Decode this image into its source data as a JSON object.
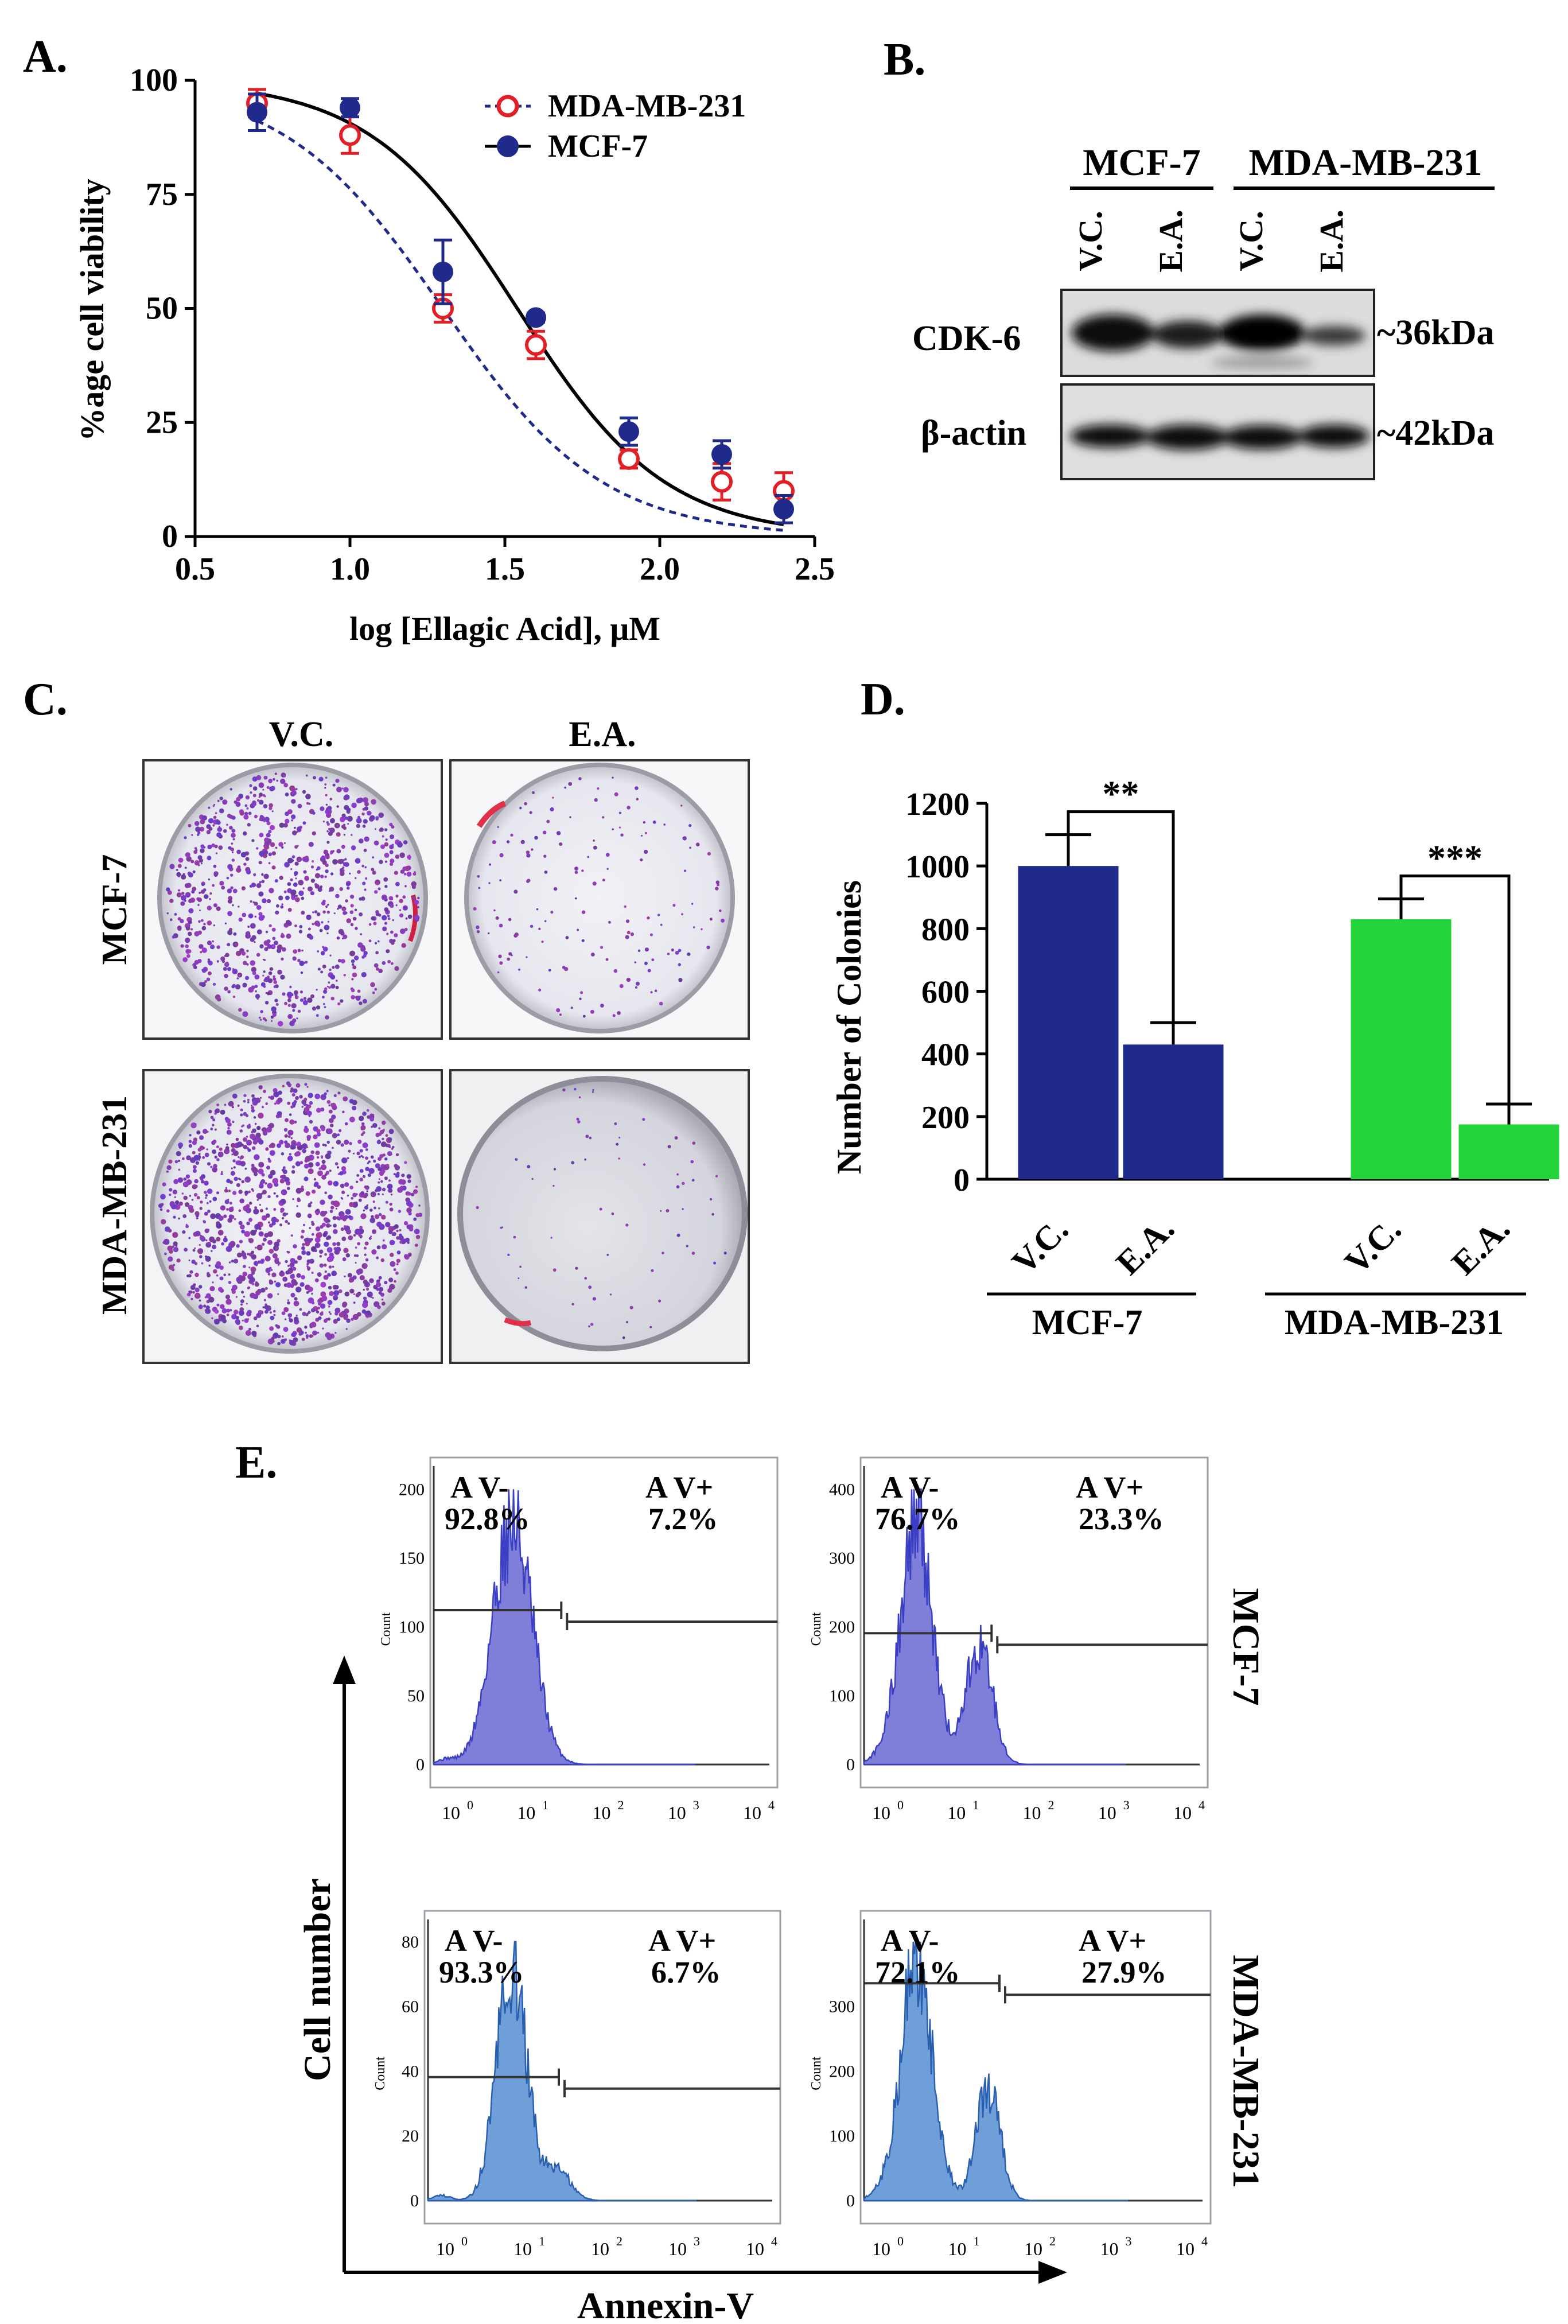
{
  "panel_labels": {
    "a": "A.",
    "b": "B.",
    "c": "C.",
    "d": "D.",
    "e": "E."
  },
  "colors": {
    "mcf7": "#1f2a8a",
    "mda": "#e21e26",
    "green": "#22d43a",
    "hist_dark": "#3a3fc4",
    "hist_dark_fill": "#7f7fd9",
    "hist_light": "#2a5fb0",
    "hist_light_fill": "#6f9fd9"
  },
  "chart_data": [
    {
      "id": "A",
      "type": "scatter",
      "title": "",
      "xlabel": "log [Ellagic Acid], μM",
      "ylabel": "%age cell viability",
      "xlim": [
        0.5,
        2.5
      ],
      "ylim": [
        0,
        100
      ],
      "xticks": [
        0.5,
        1.0,
        1.5,
        2.0,
        2.5
      ],
      "xtick_labels": [
        "0.5",
        "1.0",
        "1.5",
        "2.0",
        "2.5"
      ],
      "yticks": [
        0,
        25,
        50,
        75,
        100
      ],
      "ytick_labels": [
        "0",
        "25",
        "50",
        "75",
        "100"
      ],
      "legend": [
        "MDA-MB-231",
        "MCF-7"
      ],
      "series": [
        {
          "name": "MDA-MB-231",
          "marker": "open-circle",
          "fit": "dashed",
          "x": [
            0.7,
            1.0,
            1.3,
            1.6,
            1.9,
            2.2,
            2.4
          ],
          "y": [
            95,
            88,
            50,
            42,
            17,
            12,
            10
          ],
          "err": [
            3,
            4,
            3,
            3,
            2,
            4,
            4
          ]
        },
        {
          "name": "MCF-7",
          "marker": "filled-circle",
          "fit": "solid",
          "x": [
            0.7,
            1.0,
            1.3,
            1.6,
            1.9,
            2.2,
            2.4
          ],
          "y": [
            93,
            94,
            58,
            48,
            23,
            18,
            6
          ],
          "err": [
            4,
            2,
            7,
            1,
            3,
            3,
            3
          ]
        }
      ]
    },
    {
      "id": "D",
      "type": "bar",
      "title": "",
      "xlabel": "",
      "ylabel": "Number of Colonies",
      "ylim": [
        0,
        1200
      ],
      "yticks": [
        0,
        200,
        400,
        600,
        800,
        1000,
        1200
      ],
      "ytick_labels": [
        "0",
        "200",
        "400",
        "600",
        "800",
        "1000",
        "1200"
      ],
      "categories": [
        "V.C.",
        "E.A.",
        "V.C.",
        "E.A."
      ],
      "groups": [
        "MCF-7",
        "MDA-MB-231"
      ],
      "values": [
        1000,
        430,
        830,
        175
      ],
      "errors": [
        100,
        70,
        65,
        65
      ],
      "significance": [
        "**",
        "***"
      ]
    }
  ],
  "western": {
    "group_labels": [
      "MCF-7",
      "MDA-MB-231"
    ],
    "lane_labels": [
      "V.C.",
      "E.A.",
      "V.C.",
      "E.A."
    ],
    "rows": [
      {
        "protein": "CDK-6",
        "size": "~36kDa"
      },
      {
        "protein": "β-actin",
        "size": "~42kDa"
      }
    ]
  },
  "colony": {
    "col_labels": [
      "V.C.",
      "E.A."
    ],
    "row_labels": [
      "MCF-7",
      "MDA-MB-231"
    ]
  },
  "flow": {
    "x_axis_label": "Annexin-V",
    "y_axis_label": "Cell number",
    "row_labels": [
      "MCF-7",
      "MDA-MB-231"
    ],
    "count_label": "Count",
    "x_tick_labels": [
      "10",
      "10",
      "10",
      "10",
      "10"
    ],
    "x_tick_exponents": [
      "0",
      "1",
      "2",
      "3",
      "4"
    ],
    "gate_neg": "A V-",
    "gate_pos": "A V+",
    "plots": [
      {
        "yticks": [
          "0",
          "50",
          "100",
          "150",
          "200"
        ],
        "neg_pct": "92.8%",
        "pos_pct": "7.2%"
      },
      {
        "yticks": [
          "0",
          "100",
          "200",
          "300",
          "400"
        ],
        "neg_pct": "76.7%",
        "pos_pct": "23.3%"
      },
      {
        "yticks": [
          "0",
          "20",
          "40",
          "60",
          "80"
        ],
        "neg_pct": "93.3%",
        "pos_pct": "6.7%"
      },
      {
        "yticks": [
          "0",
          "100",
          "200",
          "300"
        ],
        "neg_pct": "72.1%",
        "pos_pct": "27.9%"
      }
    ]
  }
}
